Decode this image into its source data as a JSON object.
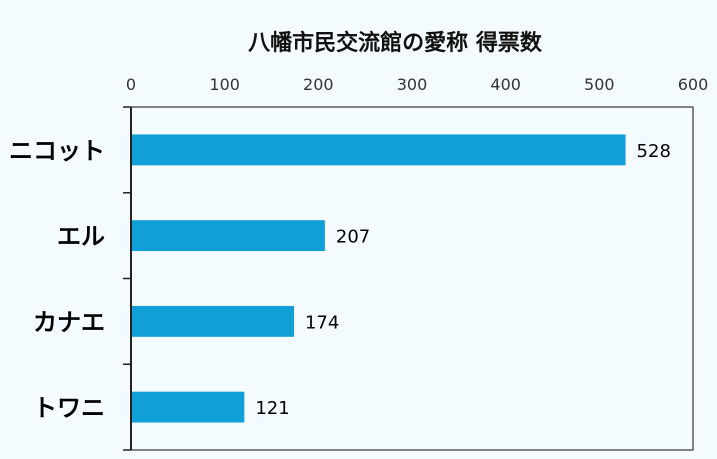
{
  "chart_data": {
    "type": "bar",
    "orientation": "horizontal",
    "title": "八幡市民交流館の愛称 得票数",
    "categories": [
      "ニコット",
      "エル",
      "カナエ",
      "トワニ"
    ],
    "values": [
      528,
      207,
      174,
      121
    ],
    "xlim": [
      0,
      600
    ],
    "x_ticks": [
      0,
      100,
      200,
      300,
      400,
      500,
      600
    ],
    "x_tick_labels": [
      "0",
      "100",
      "200",
      "300",
      "400",
      "500",
      "600"
    ],
    "data_labels": [
      "528",
      "207",
      "174",
      "121"
    ],
    "xaxis_position": "top",
    "grid": false,
    "bar_color": "#119fd8",
    "background_color": "#f4fbfe"
  }
}
